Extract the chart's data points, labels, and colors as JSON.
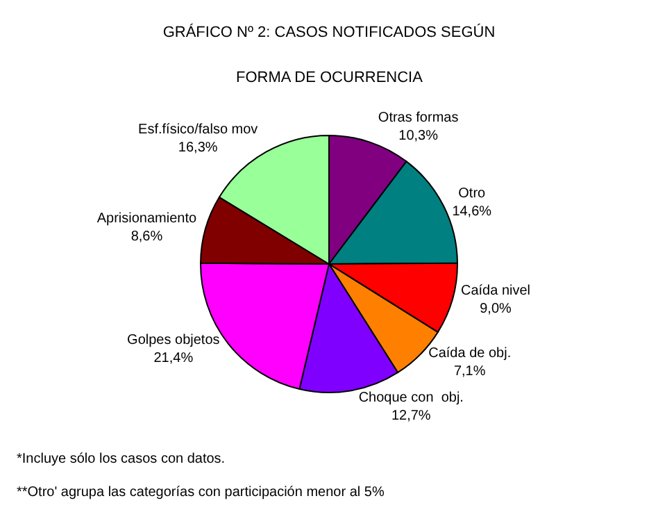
{
  "chart_data": {
    "type": "pie",
    "title": "GRÁFICO Nº 2: CASOS NOTIFICADOS SEGÚN",
    "subtitle": "FORMA DE OCURRENCIA",
    "categories": [
      "Otras formas",
      "Otro",
      "Caída nivel",
      "Caída de obj.",
      "Choque con  obj.",
      "Golpes objetos",
      "Aprisionamiento",
      "Esf.físico/falso mov"
    ],
    "values": [
      10.3,
      14.6,
      9.0,
      7.1,
      12.7,
      21.4,
      8.6,
      16.3
    ],
    "value_labels": [
      "10,3%",
      "14,6%",
      "9,0%",
      "7,1%",
      "12,7%",
      "21,4%",
      "8,6%",
      "16,3%"
    ],
    "colors": [
      "#800080",
      "#008080",
      "#ff0000",
      "#ff8000",
      "#8000ff",
      "#ff00ff",
      "#800000",
      "#99ff99"
    ],
    "annotations": [
      "*Incluye sólo los casos con datos.",
      "**Otro' agrupa las categorías con participación menor al 5%"
    ],
    "legend": false
  }
}
